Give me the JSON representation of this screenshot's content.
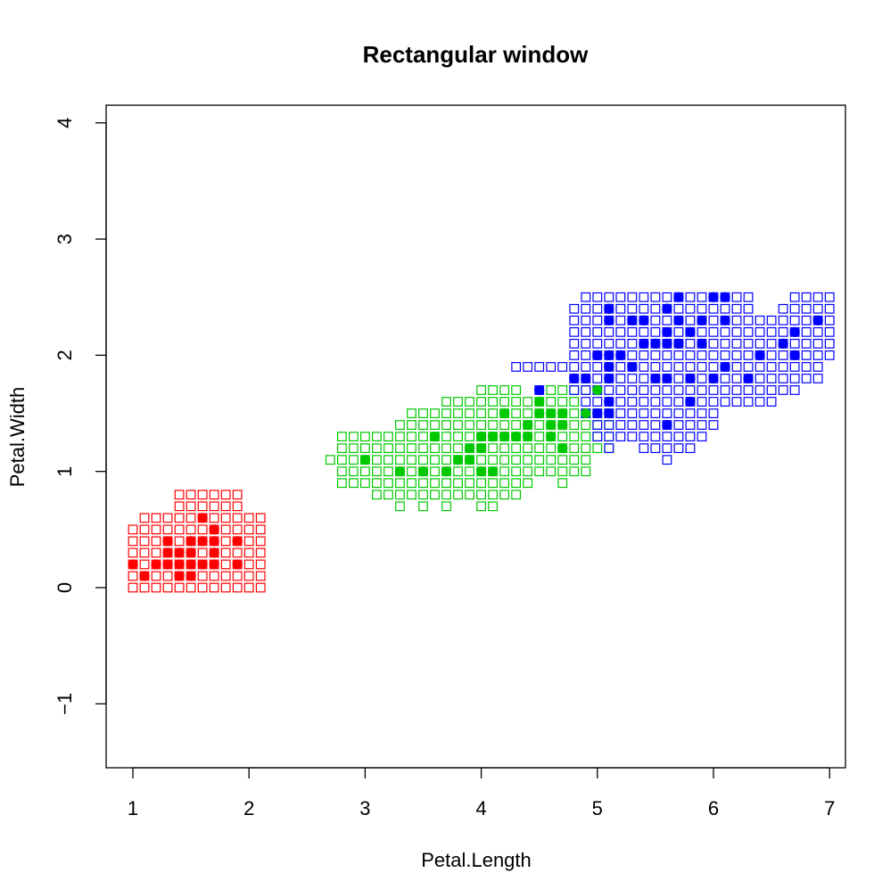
{
  "chart_data": {
    "type": "scatter",
    "title": "Rectangular window",
    "xlabel": "Petal.Length",
    "ylabel": "Petal.Width",
    "xlim": [
      1,
      7
    ],
    "ylim": [
      -1.5,
      4
    ],
    "x_ticks": [
      1,
      2,
      3,
      4,
      5,
      6,
      7
    ],
    "y_ticks": [
      -1,
      0,
      1,
      2,
      3,
      4
    ],
    "x_tick_labels": [
      "1",
      "2",
      "3",
      "4",
      "5",
      "6",
      "7"
    ],
    "y_tick_labels": [
      "−1",
      "0",
      "1",
      "2",
      "3",
      "4"
    ],
    "grid": false,
    "legend": "none",
    "cell_step": 0.1,
    "series": [
      {
        "color": "#ff0000",
        "window_rows": [
          {
            "y": 0.0,
            "x_from": 1.0,
            "x_to": 2.1
          },
          {
            "y": 0.1,
            "x_from": 1.0,
            "x_to": 2.1
          },
          {
            "y": 0.2,
            "x_from": 1.0,
            "x_to": 2.1
          },
          {
            "y": 0.3,
            "x_from": 1.0,
            "x_to": 2.1
          },
          {
            "y": 0.4,
            "x_from": 1.0,
            "x_to": 2.1
          },
          {
            "y": 0.5,
            "x_from": 1.0,
            "x_to": 2.1
          },
          {
            "y": 0.6,
            "x_from": 1.1,
            "x_to": 2.1
          },
          {
            "y": 0.7,
            "x_from": 1.4,
            "x_to": 1.9
          },
          {
            "y": 0.8,
            "x_from": 1.4,
            "x_to": 1.9
          }
        ],
        "points": [
          [
            1.0,
            0.2
          ],
          [
            1.1,
            0.1
          ],
          [
            1.2,
            0.2
          ],
          [
            1.3,
            0.2
          ],
          [
            1.3,
            0.3
          ],
          [
            1.3,
            0.4
          ],
          [
            1.4,
            0.1
          ],
          [
            1.4,
            0.2
          ],
          [
            1.4,
            0.3
          ],
          [
            1.5,
            0.1
          ],
          [
            1.5,
            0.2
          ],
          [
            1.5,
            0.3
          ],
          [
            1.5,
            0.4
          ],
          [
            1.6,
            0.2
          ],
          [
            1.6,
            0.4
          ],
          [
            1.6,
            0.6
          ],
          [
            1.7,
            0.2
          ],
          [
            1.7,
            0.3
          ],
          [
            1.7,
            0.4
          ],
          [
            1.7,
            0.5
          ],
          [
            1.9,
            0.2
          ],
          [
            1.9,
            0.4
          ]
        ]
      },
      {
        "color": "#00c800",
        "window_rows": [
          {
            "y": 0.7,
            "x_from": 3.3,
            "x_to": 3.3
          },
          {
            "y": 0.7,
            "x_from": 3.5,
            "x_to": 3.5
          },
          {
            "y": 0.7,
            "x_from": 3.7,
            "x_to": 3.7
          },
          {
            "y": 0.7,
            "x_from": 4.0,
            "x_to": 4.1
          },
          {
            "y": 0.8,
            "x_from": 3.1,
            "x_to": 4.3
          },
          {
            "y": 0.9,
            "x_from": 2.8,
            "x_to": 4.4
          },
          {
            "y": 0.9,
            "x_from": 4.7,
            "x_to": 4.7
          },
          {
            "y": 1.0,
            "x_from": 2.8,
            "x_to": 4.9
          },
          {
            "y": 1.1,
            "x_from": 2.7,
            "x_to": 4.9
          },
          {
            "y": 1.2,
            "x_from": 2.8,
            "x_to": 5.1
          },
          {
            "y": 1.3,
            "x_from": 2.8,
            "x_to": 5.1
          },
          {
            "y": 1.4,
            "x_from": 3.3,
            "x_to": 5.1
          },
          {
            "y": 1.5,
            "x_from": 3.4,
            "x_to": 5.1
          },
          {
            "y": 1.6,
            "x_from": 3.7,
            "x_to": 4.8
          },
          {
            "y": 1.7,
            "x_from": 4.0,
            "x_to": 4.3
          },
          {
            "y": 1.7,
            "x_from": 4.6,
            "x_to": 4.9
          }
        ],
        "points": [
          [
            3.0,
            1.1
          ],
          [
            3.3,
            1.0
          ],
          [
            3.5,
            1.0
          ],
          [
            3.6,
            1.3
          ],
          [
            3.7,
            1.0
          ],
          [
            3.8,
            1.1
          ],
          [
            3.9,
            1.1
          ],
          [
            3.9,
            1.2
          ],
          [
            4.0,
            1.0
          ],
          [
            4.0,
            1.2
          ],
          [
            4.0,
            1.3
          ],
          [
            4.1,
            1.0
          ],
          [
            4.1,
            1.3
          ],
          [
            4.2,
            1.3
          ],
          [
            4.2,
            1.5
          ],
          [
            4.3,
            1.3
          ],
          [
            4.4,
            1.3
          ],
          [
            4.4,
            1.4
          ],
          [
            4.5,
            1.5
          ],
          [
            4.5,
            1.6
          ],
          [
            4.6,
            1.3
          ],
          [
            4.6,
            1.4
          ],
          [
            4.6,
            1.5
          ],
          [
            4.7,
            1.2
          ],
          [
            4.7,
            1.4
          ],
          [
            4.7,
            1.5
          ],
          [
            4.9,
            1.5
          ],
          [
            5.0,
            1.7
          ]
        ]
      },
      {
        "color": "#0000ff",
        "window_rows": [
          {
            "y": 1.1,
            "x_from": 5.6,
            "x_to": 5.6
          },
          {
            "y": 1.2,
            "x_from": 5.1,
            "x_to": 5.1
          },
          {
            "y": 1.2,
            "x_from": 5.4,
            "x_to": 5.8
          },
          {
            "y": 1.3,
            "x_from": 5.0,
            "x_to": 5.9
          },
          {
            "y": 1.4,
            "x_from": 5.0,
            "x_to": 6.0
          },
          {
            "y": 1.5,
            "x_from": 4.9,
            "x_to": 6.0
          },
          {
            "y": 1.6,
            "x_from": 4.9,
            "x_to": 6.5
          },
          {
            "y": 1.7,
            "x_from": 4.5,
            "x_to": 4.5
          },
          {
            "y": 1.7,
            "x_from": 4.8,
            "x_to": 6.6
          },
          {
            "y": 1.7,
            "x_from": 6.7,
            "x_to": 6.7
          },
          {
            "y": 1.8,
            "x_from": 4.8,
            "x_to": 6.4
          },
          {
            "y": 1.8,
            "x_from": 6.5,
            "x_to": 6.9
          },
          {
            "y": 1.9,
            "x_from": 4.3,
            "x_to": 6.9
          },
          {
            "y": 2.0,
            "x_from": 4.8,
            "x_to": 7.0
          },
          {
            "y": 2.1,
            "x_from": 4.8,
            "x_to": 7.0
          },
          {
            "y": 2.2,
            "x_from": 4.8,
            "x_to": 7.0
          },
          {
            "y": 2.3,
            "x_from": 4.8,
            "x_to": 7.0
          },
          {
            "y": 2.4,
            "x_from": 4.8,
            "x_to": 6.3
          },
          {
            "y": 2.4,
            "x_from": 6.6,
            "x_to": 7.0
          },
          {
            "y": 2.5,
            "x_from": 4.9,
            "x_to": 6.3
          },
          {
            "y": 2.5,
            "x_from": 6.7,
            "x_to": 7.0
          }
        ],
        "points": [
          [
            4.5,
            1.7
          ],
          [
            4.8,
            1.8
          ],
          [
            4.9,
            1.8
          ],
          [
            5.0,
            1.5
          ],
          [
            5.0,
            2.0
          ],
          [
            5.1,
            1.5
          ],
          [
            5.1,
            1.6
          ],
          [
            5.1,
            1.8
          ],
          [
            5.1,
            1.9
          ],
          [
            5.1,
            2.0
          ],
          [
            5.1,
            2.3
          ],
          [
            5.1,
            2.4
          ],
          [
            5.2,
            2.0
          ],
          [
            5.3,
            1.9
          ],
          [
            5.3,
            2.3
          ],
          [
            5.4,
            2.1
          ],
          [
            5.4,
            2.3
          ],
          [
            5.5,
            1.8
          ],
          [
            5.5,
            2.1
          ],
          [
            5.6,
            1.4
          ],
          [
            5.6,
            1.8
          ],
          [
            5.6,
            2.1
          ],
          [
            5.6,
            2.2
          ],
          [
            5.6,
            2.4
          ],
          [
            5.7,
            2.1
          ],
          [
            5.7,
            2.3
          ],
          [
            5.7,
            2.5
          ],
          [
            5.8,
            1.6
          ],
          [
            5.8,
            1.8
          ],
          [
            5.8,
            2.2
          ],
          [
            5.9,
            2.1
          ],
          [
            5.9,
            2.3
          ],
          [
            6.0,
            1.8
          ],
          [
            6.0,
            2.5
          ],
          [
            6.1,
            1.9
          ],
          [
            6.1,
            2.3
          ],
          [
            6.1,
            2.5
          ],
          [
            6.3,
            1.8
          ],
          [
            6.4,
            2.0
          ],
          [
            6.6,
            2.1
          ],
          [
            6.7,
            2.0
          ],
          [
            6.7,
            2.2
          ],
          [
            6.9,
            2.3
          ]
        ]
      }
    ]
  }
}
